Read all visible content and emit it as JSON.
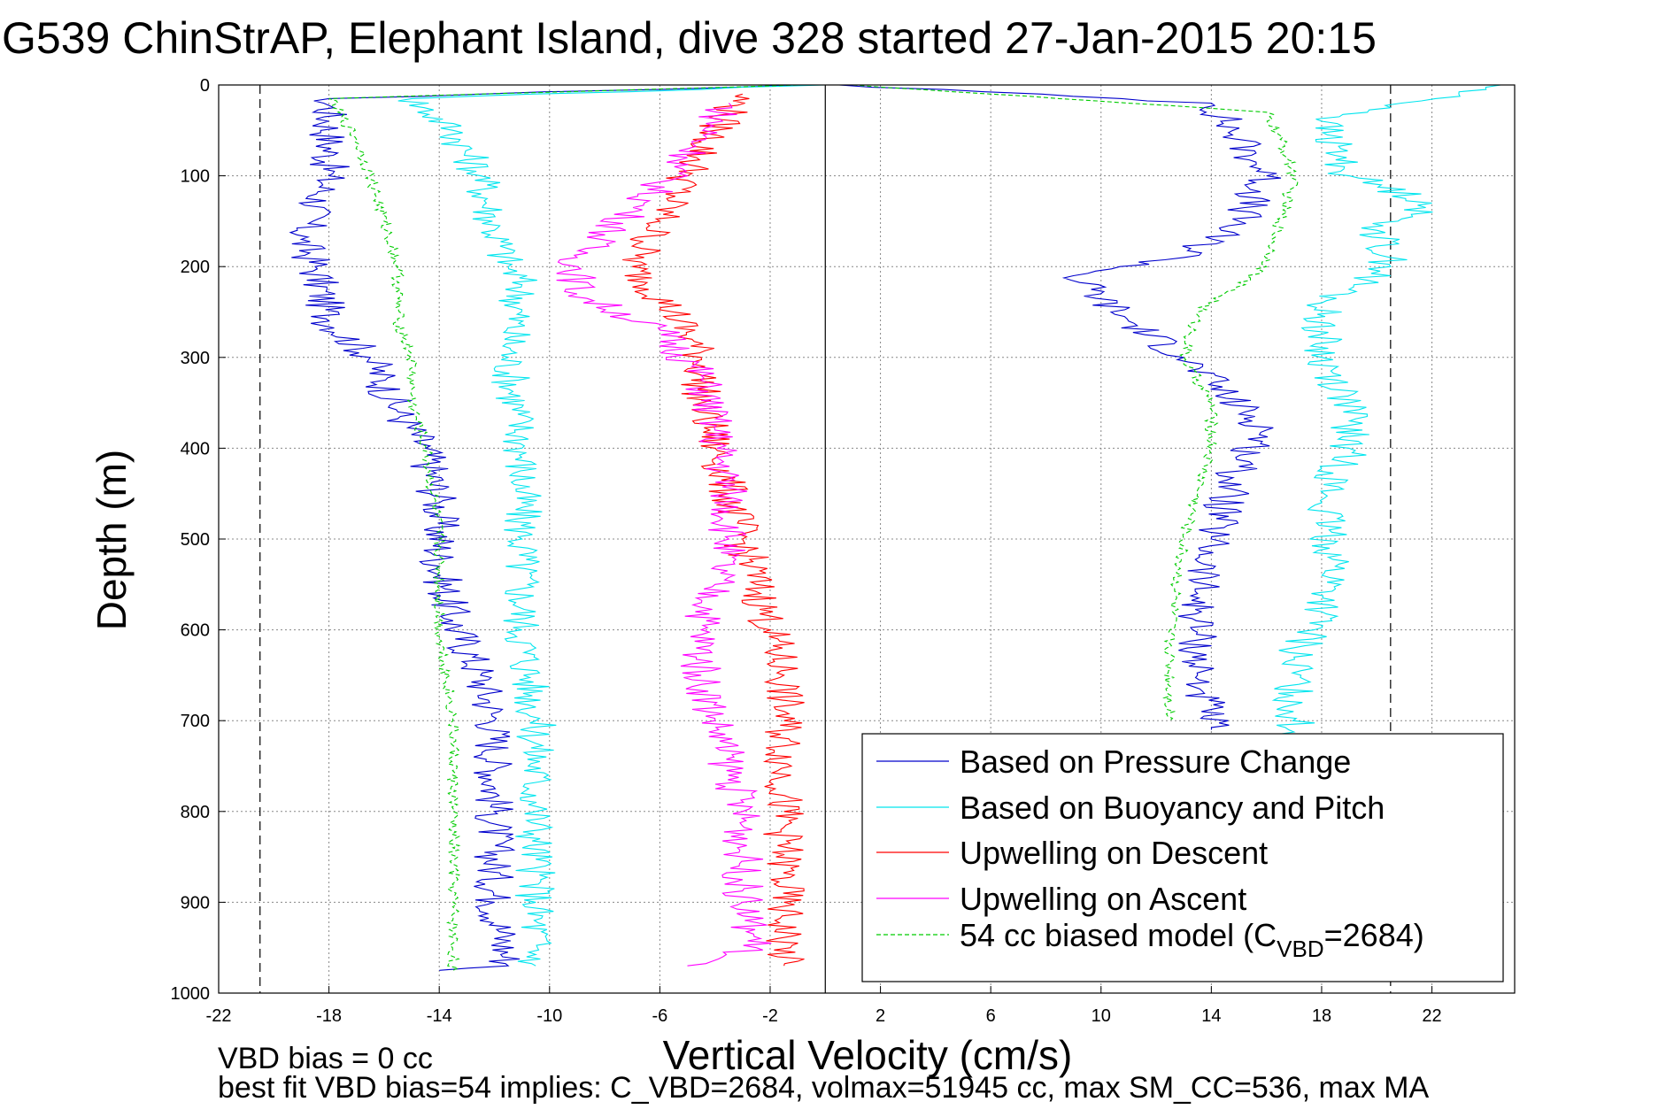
{
  "chart_data": {
    "type": "line",
    "title": "G539 ChinStrAP, Elephant Island, dive 328 started 27-Jan-2015 20:15",
    "xlabel": "Vertical Velocity (cm/s)",
    "ylabel": "Depth (m)",
    "xlim": [
      -22,
      25
    ],
    "ylim": [
      0,
      1000
    ],
    "y_reversed": true,
    "xticks": [
      -22,
      -18,
      -14,
      -10,
      -6,
      -2,
      2,
      6,
      10,
      14,
      18,
      22
    ],
    "yticks": [
      0,
      100,
      200,
      300,
      400,
      500,
      600,
      700,
      800,
      900,
      1000
    ],
    "grid": true,
    "legend_position": "bottom-right",
    "zero_line": 0,
    "limit_lines": [
      -20.5,
      20.5
    ],
    "series": [
      {
        "name": "Based on Pressure Change",
        "color": "#0000cc",
        "style": "solid",
        "descent": [
          [
            -1,
            0
          ],
          [
            -18,
            15
          ],
          [
            -18,
            100
          ],
          [
            -19,
            170
          ],
          [
            -18.5,
            200
          ],
          [
            -18,
            260
          ],
          [
            -16.5,
            300
          ],
          [
            -15.5,
            360
          ],
          [
            -14.5,
            400
          ],
          [
            -14,
            460
          ],
          [
            -14,
            530
          ],
          [
            -13.5,
            590
          ],
          [
            -12.5,
            650
          ],
          [
            -12,
            700
          ],
          [
            -12,
            800
          ],
          [
            -12,
            900
          ],
          [
            -11.5,
            970
          ],
          [
            -14,
            975
          ]
        ],
        "ascent": [
          [
            0.5,
            0
          ],
          [
            14,
            20
          ],
          [
            15,
            60
          ],
          [
            16,
            100
          ],
          [
            15,
            150
          ],
          [
            13,
            190
          ],
          [
            9,
            210
          ],
          [
            11,
            260
          ],
          [
            13,
            300
          ],
          [
            14.5,
            340
          ],
          [
            16,
            380
          ],
          [
            15,
            420
          ],
          [
            14,
            500
          ],
          [
            13.5,
            560
          ],
          [
            13.5,
            650
          ],
          [
            14,
            710
          ]
        ]
      },
      {
        "name": "Based on Buoyancy and Pitch",
        "color": "#00e5ee",
        "style": "solid",
        "descent": [
          [
            0,
            0
          ],
          [
            -15,
            15
          ],
          [
            -13.5,
            50
          ],
          [
            -12.5,
            100
          ],
          [
            -12,
            160
          ],
          [
            -11.5,
            200
          ],
          [
            -11,
            220
          ],
          [
            -11.5,
            300
          ],
          [
            -11,
            400
          ],
          [
            -11,
            500
          ],
          [
            -11,
            600
          ],
          [
            -10.5,
            700
          ],
          [
            -10.5,
            800
          ],
          [
            -10.5,
            900
          ],
          [
            -10.5,
            970
          ]
        ],
        "ascent": [
          [
            24.5,
            0
          ],
          [
            18,
            40
          ],
          [
            19,
            100
          ],
          [
            22,
            130
          ],
          [
            20,
            160
          ],
          [
            20.5,
            200
          ],
          [
            18,
            240
          ],
          [
            18,
            300
          ],
          [
            19,
            350
          ],
          [
            19,
            400
          ],
          [
            18,
            460
          ],
          [
            18.5,
            530
          ],
          [
            18,
            580
          ],
          [
            17,
            630
          ],
          [
            17,
            720
          ]
        ]
      },
      {
        "name": "Upwelling on Descent",
        "color": "#ff0000",
        "style": "solid",
        "points": [
          [
            -3,
            10
          ],
          [
            -4,
            50
          ],
          [
            -5,
            100
          ],
          [
            -6,
            150
          ],
          [
            -7,
            200
          ],
          [
            -5.5,
            250
          ],
          [
            -4.5,
            300
          ],
          [
            -4.5,
            350
          ],
          [
            -4,
            400
          ],
          [
            -3.5,
            450
          ],
          [
            -3,
            500
          ],
          [
            -2.5,
            550
          ],
          [
            -2,
            600
          ],
          [
            -1.5,
            650
          ],
          [
            -1.5,
            700
          ],
          [
            -1.5,
            800
          ],
          [
            -1.5,
            900
          ],
          [
            -1.5,
            970
          ]
        ]
      },
      {
        "name": "Upwelling on Ascent",
        "color": "#ff00ff",
        "style": "solid",
        "points": [
          [
            -3.5,
            20
          ],
          [
            -5,
            80
          ],
          [
            -7,
            140
          ],
          [
            -9,
            190
          ],
          [
            -9,
            230
          ],
          [
            -6,
            270
          ],
          [
            -4.5,
            320
          ],
          [
            -4,
            380
          ],
          [
            -3.5,
            450
          ],
          [
            -3.5,
            500
          ],
          [
            -4,
            550
          ],
          [
            -4.5,
            600
          ],
          [
            -4.5,
            650
          ],
          [
            -4,
            700
          ],
          [
            -3.5,
            750
          ],
          [
            -3,
            800
          ],
          [
            -3,
            850
          ],
          [
            -3,
            900
          ],
          [
            -2.5,
            950
          ],
          [
            -5,
            970
          ]
        ]
      },
      {
        "name": "54 cc biased model (C<sub>VBD</sub>=2684)",
        "legend_main": "54 cc biased model (C",
        "legend_sub": "VBD",
        "legend_tail": "=2684)",
        "color": "#00cc00",
        "style": "dashed",
        "descent": [
          [
            -1,
            0
          ],
          [
            -18,
            15
          ],
          [
            -17,
            60
          ],
          [
            -16.5,
            100
          ],
          [
            -16,
            150
          ],
          [
            -15.5,
            200
          ],
          [
            -15.5,
            260
          ],
          [
            -15,
            300
          ],
          [
            -15,
            350
          ],
          [
            -14.5,
            400
          ],
          [
            -14,
            500
          ],
          [
            -14,
            600
          ],
          [
            -13.5,
            700
          ],
          [
            -13.5,
            800
          ],
          [
            -13.5,
            900
          ],
          [
            -13.5,
            975
          ]
        ],
        "ascent": [
          [
            1,
            0
          ],
          [
            16,
            30
          ],
          [
            16.5,
            60
          ],
          [
            17,
            100
          ],
          [
            16.5,
            150
          ],
          [
            16,
            200
          ],
          [
            13.5,
            250
          ],
          [
            13,
            300
          ],
          [
            14,
            350
          ],
          [
            14,
            400
          ],
          [
            13.5,
            450
          ],
          [
            13,
            500
          ],
          [
            12.5,
            600
          ],
          [
            12.5,
            700
          ]
        ]
      }
    ]
  },
  "footer": {
    "line1": "VBD bias = 0 cc",
    "line2": "best fit VBD bias=54 implies: C_VBD=2684, volmax=51945 cc, max SM_CC=536, max MA"
  }
}
